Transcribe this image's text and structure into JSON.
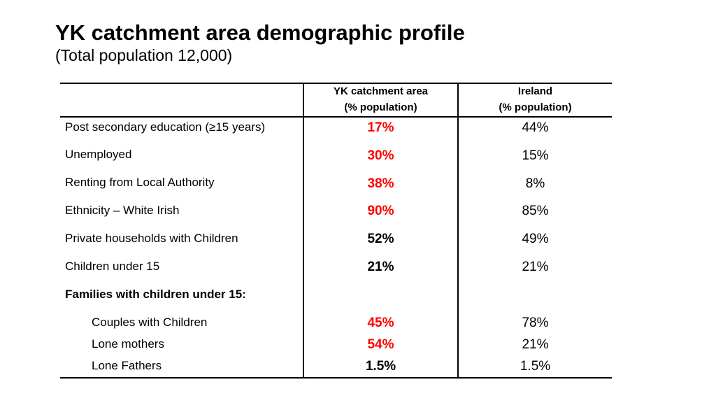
{
  "title": "YK catchment area demographic profile",
  "subtitle": "(Total population 12,000)",
  "table": {
    "headers": {
      "yk_line1": "YK catchment area",
      "yk_line2": "(% population)",
      "ireland_line1": "Ireland",
      "ireland_line2": "(% population)"
    },
    "rows": [
      {
        "label": "Post secondary education (≥15 years)",
        "yk": "17%",
        "ireland": "44%",
        "yk_color": "#ff0000"
      },
      {
        "label": "Unemployed",
        "yk": "30%",
        "ireland": "15%",
        "yk_color": "#ff0000"
      },
      {
        "label": "Renting from Local Authority",
        "yk": "38%",
        "ireland": "8%",
        "yk_color": "#ff0000"
      },
      {
        "label": "Ethnicity – White Irish",
        "yk": "90%",
        "ireland": "85%",
        "yk_color": "#ff0000"
      },
      {
        "label": "Private households with Children",
        "yk": "52%",
        "ireland": "49%",
        "yk_color": "#000000"
      },
      {
        "label": "Children under 15",
        "yk": "21%",
        "ireland": "21%",
        "yk_color": "#000000"
      },
      {
        "label": "Families with children under 15:",
        "yk": "",
        "ireland": "",
        "yk_color": "#000000"
      },
      {
        "label": "Couples with Children",
        "yk": "45%",
        "ireland": "78%",
        "yk_color": "#ff0000"
      },
      {
        "label": "Lone mothers",
        "yk": "54%",
        "ireland": "21%",
        "yk_color": "#ff0000"
      },
      {
        "label": "Lone Fathers",
        "yk": "1.5%",
        "ireland": "1.5%",
        "yk_color": "#000000"
      }
    ]
  }
}
